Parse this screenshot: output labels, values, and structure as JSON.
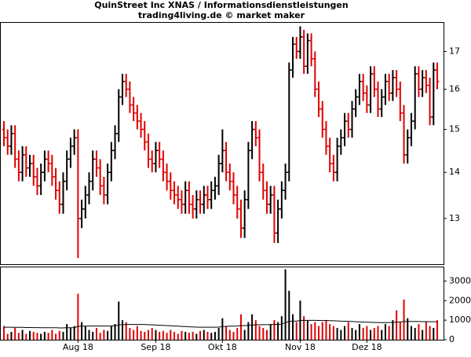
{
  "chart_data": {
    "type": "ohlc",
    "title": "QuinStreet Inc XNAS / Informationsdienstleistungen",
    "subtitle": "trading4living.de © market maker",
    "categories": [
      null,
      null,
      null,
      null,
      null,
      null,
      null,
      null,
      null,
      null,
      null,
      null,
      null,
      null,
      null,
      null,
      null,
      null,
      null,
      null,
      "Aug 18",
      null,
      null,
      null,
      null,
      null,
      null,
      null,
      null,
      null,
      null,
      null,
      null,
      null,
      null,
      null,
      null,
      null,
      null,
      null,
      null,
      "Sep 18",
      null,
      null,
      null,
      null,
      null,
      null,
      null,
      null,
      null,
      null,
      null,
      null,
      null,
      null,
      null,
      null,
      null,
      "Okt 18",
      null,
      null,
      null,
      null,
      null,
      null,
      null,
      null,
      null,
      null,
      null,
      null,
      null,
      null,
      null,
      null,
      null,
      null,
      null,
      null,
      "Nov 18",
      null,
      null,
      null,
      null,
      null,
      null,
      null,
      null,
      null,
      null,
      null,
      null,
      null,
      null,
      null,
      null,
      null,
      "Dez 18",
      null,
      null,
      null,
      null,
      null,
      null,
      null,
      null,
      null,
      null,
      null,
      null,
      null,
      null,
      null,
      null,
      null,
      null,
      null
    ],
    "open": [
      15.0,
      14.8,
      14.6,
      14.9,
      14.3,
      14.0,
      14.4,
      14.1,
      14.2,
      13.9,
      13.7,
      14.0,
      14.3,
      14.2,
      13.9,
      13.6,
      13.3,
      13.8,
      14.3,
      14.6,
      14.8,
      13.0,
      13.2,
      13.5,
      13.8,
      14.3,
      14.1,
      13.7,
      13.5,
      14.0,
      14.5,
      14.9,
      15.8,
      16.2,
      16.0,
      15.6,
      15.4,
      15.2,
      15.0,
      14.7,
      14.3,
      14.2,
      14.5,
      14.3,
      14.0,
      13.8,
      13.6,
      13.5,
      13.4,
      13.3,
      13.6,
      13.3,
      13.2,
      13.4,
      13.3,
      13.5,
      13.4,
      13.6,
      13.7,
      14.2,
      14.5,
      14.0,
      13.8,
      13.5,
      13.2,
      12.8,
      13.4,
      14.5,
      15.0,
      14.8,
      14.0,
      13.6,
      13.3,
      13.5,
      12.7,
      13.2,
      13.6,
      14.0,
      16.5,
      17.2,
      17.0,
      17.4,
      16.6,
      17.3,
      16.8,
      16.0,
      15.5,
      15.0,
      14.6,
      14.2,
      14.0,
      14.6,
      14.8,
      15.2,
      15.0,
      15.5,
      15.8,
      16.2,
      15.9,
      15.6,
      16.4,
      16.0,
      15.5,
      15.8,
      16.2,
      15.9,
      16.3,
      16.0,
      15.4,
      14.4,
      14.8,
      15.2,
      16.4,
      16.0,
      16.3,
      16.1,
      15.3,
      16.5
    ],
    "high": [
      15.2,
      15.0,
      15.1,
      15.1,
      14.5,
      14.6,
      14.6,
      14.4,
      14.4,
      14.1,
      14.2,
      14.5,
      14.5,
      14.4,
      14.1,
      13.8,
      14.0,
      14.5,
      14.8,
      15.0,
      15.0,
      13.4,
      13.7,
      14.0,
      14.5,
      14.5,
      14.3,
      13.9,
      14.2,
      14.7,
      15.1,
      16.0,
      16.4,
      16.4,
      16.2,
      15.8,
      15.6,
      15.4,
      15.2,
      14.9,
      14.5,
      14.7,
      14.7,
      14.5,
      14.2,
      14.0,
      13.8,
      13.7,
      13.6,
      13.8,
      13.8,
      13.5,
      13.6,
      13.6,
      13.7,
      13.7,
      13.8,
      13.9,
      14.4,
      15.0,
      14.7,
      14.2,
      14.0,
      13.7,
      13.4,
      13.6,
      14.7,
      15.2,
      15.2,
      15.0,
      14.2,
      13.8,
      13.7,
      13.7,
      13.4,
      13.8,
      14.2,
      16.7,
      17.4,
      17.4,
      17.7,
      17.6,
      17.5,
      17.5,
      17.0,
      16.2,
      15.7,
      15.2,
      14.8,
      14.4,
      14.8,
      15.0,
      15.4,
      15.4,
      15.7,
      16.0,
      16.4,
      16.4,
      16.1,
      16.6,
      16.6,
      16.2,
      16.0,
      16.4,
      16.4,
      16.5,
      16.5,
      16.2,
      15.6,
      15.0,
      15.4,
      16.6,
      16.6,
      16.5,
      16.5,
      16.3,
      16.7,
      16.7
    ],
    "low": [
      14.6,
      14.4,
      14.4,
      14.1,
      13.8,
      13.8,
      13.9,
      13.9,
      13.7,
      13.5,
      13.5,
      13.8,
      14.0,
      13.7,
      13.4,
      13.1,
      13.1,
      13.6,
      14.1,
      14.4,
      12.2,
      12.8,
      13.0,
      13.3,
      13.6,
      13.9,
      13.5,
      13.3,
      13.3,
      13.8,
      14.3,
      14.7,
      15.6,
      15.8,
      15.4,
      15.2,
      15.0,
      14.8,
      14.5,
      14.1,
      14.0,
      14.0,
      14.1,
      13.8,
      13.6,
      13.4,
      13.3,
      13.2,
      13.1,
      13.1,
      13.1,
      13.0,
      13.0,
      13.1,
      13.1,
      13.2,
      13.2,
      13.4,
      13.5,
      14.0,
      13.8,
      13.6,
      13.3,
      13.0,
      12.6,
      12.6,
      13.2,
      14.3,
      14.6,
      13.8,
      13.4,
      13.1,
      13.1,
      12.5,
      12.5,
      13.0,
      13.4,
      13.8,
      16.3,
      16.8,
      16.8,
      16.4,
      16.4,
      16.6,
      15.8,
      15.3,
      14.8,
      14.4,
      14.0,
      13.8,
      13.8,
      14.4,
      14.6,
      14.8,
      14.8,
      15.3,
      15.6,
      15.7,
      15.4,
      15.4,
      15.8,
      15.3,
      15.3,
      15.6,
      15.7,
      15.7,
      15.8,
      15.2,
      14.2,
      14.2,
      14.6,
      15.0,
      15.8,
      15.8,
      15.9,
      15.1,
      15.1,
      16.0
    ],
    "close": [
      14.8,
      14.6,
      14.9,
      14.3,
      14.0,
      14.4,
      14.1,
      14.2,
      13.9,
      13.7,
      14.0,
      14.3,
      14.2,
      13.9,
      13.6,
      13.3,
      13.8,
      14.3,
      14.6,
      14.8,
      13.0,
      13.2,
      13.5,
      13.8,
      14.3,
      14.1,
      13.7,
      13.5,
      14.0,
      14.5,
      14.9,
      15.8,
      16.2,
      16.0,
      15.6,
      15.4,
      15.2,
      15.0,
      14.7,
      14.3,
      14.2,
      14.5,
      14.3,
      14.0,
      13.8,
      13.6,
      13.5,
      13.4,
      13.3,
      13.6,
      13.3,
      13.2,
      13.4,
      13.3,
      13.5,
      13.4,
      13.6,
      13.7,
      14.2,
      14.5,
      14.0,
      13.8,
      13.5,
      13.2,
      12.8,
      13.4,
      14.5,
      15.0,
      14.8,
      14.0,
      13.6,
      13.3,
      13.5,
      12.7,
      13.2,
      13.6,
      14.0,
      16.5,
      17.2,
      17.0,
      17.4,
      16.6,
      17.3,
      16.8,
      16.0,
      15.5,
      15.0,
      14.6,
      14.2,
      14.0,
      14.6,
      14.8,
      15.2,
      15.0,
      15.5,
      15.8,
      16.2,
      15.9,
      15.6,
      16.4,
      16.0,
      15.5,
      15.8,
      16.2,
      15.9,
      16.3,
      16.0,
      15.4,
      14.4,
      14.8,
      15.2,
      16.4,
      16.0,
      16.3,
      16.1,
      15.3,
      16.5,
      16.2
    ],
    "up_color": "#000000",
    "down_color": "#e00000",
    "log_scale": true,
    "ylim": [
      12.08,
      17.8
    ],
    "yticks": [
      13,
      14,
      15,
      16,
      17
    ],
    "volume": [
      700,
      300,
      400,
      600,
      350,
      500,
      300,
      450,
      400,
      350,
      300,
      400,
      350,
      500,
      300,
      450,
      400,
      800,
      600,
      700,
      2350,
      900,
      700,
      500,
      400,
      600,
      350,
      500,
      450,
      700,
      800,
      1950,
      1000,
      900,
      600,
      500,
      700,
      450,
      400,
      500,
      600,
      500,
      400,
      450,
      350,
      500,
      400,
      300,
      450,
      400,
      350,
      400,
      300,
      450,
      500,
      400,
      350,
      400,
      600,
      1100,
      700,
      500,
      400,
      600,
      1300,
      500,
      900,
      1300,
      1000,
      700,
      600,
      500,
      800,
      1000,
      900,
      1200,
      3600,
      2500,
      1300,
      900,
      2000,
      1200,
      1000,
      800,
      900,
      700,
      900,
      1000,
      800,
      700,
      600,
      500,
      700,
      900,
      600,
      500,
      800,
      600,
      700,
      500,
      600,
      700,
      500,
      800,
      700,
      1000,
      1500,
      900,
      2050,
      1100,
      700,
      600,
      800,
      500,
      900,
      700,
      600,
      1000
    ],
    "volume_average": [
      640,
      640,
      640,
      635,
      630,
      630,
      625,
      625,
      620,
      620,
      615,
      615,
      610,
      610,
      610,
      605,
      605,
      610,
      615,
      620,
      680,
      690,
      695,
      700,
      700,
      700,
      700,
      700,
      700,
      700,
      710,
      760,
      770,
      780,
      780,
      780,
      780,
      780,
      775,
      770,
      760,
      750,
      740,
      730,
      720,
      710,
      700,
      690,
      680,
      670,
      660,
      650,
      645,
      640,
      640,
      640,
      640,
      640,
      645,
      670,
      680,
      690,
      690,
      700,
      720,
      720,
      730,
      750,
      760,
      770,
      770,
      770,
      775,
      780,
      785,
      790,
      880,
      930,
      950,
      950,
      980,
      990,
      990,
      990,
      990,
      985,
      980,
      980,
      975,
      970,
      960,
      950,
      945,
      940,
      930,
      920,
      910,
      900,
      895,
      890,
      885,
      880,
      875,
      875,
      880,
      885,
      900,
      905,
      930,
      935,
      935,
      930,
      930,
      925,
      925,
      920,
      920,
      920
    ],
    "volume_average_color": "#000000",
    "y2lim": [
      0,
      3700
    ],
    "y2ticks": [
      0,
      1000,
      2000,
      3000
    ]
  }
}
